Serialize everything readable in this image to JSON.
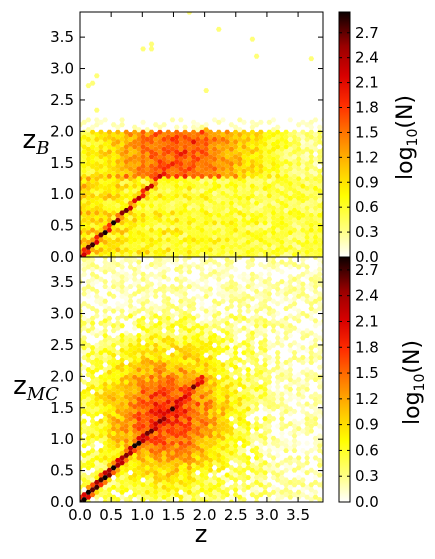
{
  "figure": {
    "xlabel": "z",
    "panels": [
      {
        "ylabel_main": "z",
        "ylabel_sub": "B",
        "colorbar_label_prefix": "log",
        "colorbar_label_sub": "10",
        "colorbar_label_suffix": "(N)"
      },
      {
        "ylabel_main": "z",
        "ylabel_sub": "MC",
        "colorbar_label_prefix": "log",
        "colorbar_label_sub": "10",
        "colorbar_label_suffix": "(N)"
      }
    ]
  },
  "chart_data": [
    {
      "type": "heatmap",
      "subtype": "hexbin",
      "panel": "top",
      "xlim": [
        0.0,
        3.9
      ],
      "ylim": [
        0.0,
        3.9
      ],
      "x_ticks": [
        0.0,
        0.5,
        1.0,
        1.5,
        2.0,
        2.5,
        3.0,
        3.5
      ],
      "x_tick_labels": [
        "0.0",
        "0.5",
        "1.0",
        "1.5",
        "2.0",
        "2.5",
        "3.0",
        "3.5"
      ],
      "y_ticks": [
        0.0,
        0.5,
        1.0,
        1.5,
        2.0,
        2.5,
        3.0,
        3.5
      ],
      "y_tick_labels": [
        "0.0",
        "0.5",
        "1.0",
        "1.5",
        "2.0",
        "2.5",
        "3.0",
        "3.5"
      ],
      "x_tick_labels_visible": false,
      "colormap": "hot_r",
      "colorbar": {
        "range": [
          0.0,
          2.95
        ],
        "ticks": [
          0.0,
          0.3,
          0.6,
          0.9,
          1.2,
          1.5,
          1.8,
          2.1,
          2.4,
          2.7
        ],
        "tick_labels": [
          "0.0",
          "0.3",
          "0.6",
          "0.9",
          "1.2",
          "1.5",
          "1.8",
          "2.1",
          "2.4",
          "2.7"
        ]
      },
      "features": {
        "diagonal_ridge": {
          "from": [
            0.05,
            0.05
          ],
          "to": [
            2.0,
            2.0
          ],
          "peak_log10N": 2.8
        },
        "populated_band_y": [
          0.0,
          2.2
        ],
        "dense_band": {
          "y": [
            1.25,
            2.0
          ],
          "x": [
            0.0,
            2.9
          ],
          "log10N": 1.5
        },
        "horizontal_stripes_y": [
          0.1,
          0.25,
          0.4,
          0.55,
          0.7,
          0.95,
          1.1,
          1.25
        ],
        "sparse_outliers_y": [
          3.5,
          3.9
        ]
      }
    },
    {
      "type": "heatmap",
      "subtype": "hexbin",
      "panel": "bottom",
      "xlim": [
        0.0,
        3.9
      ],
      "ylim": [
        0.0,
        3.9
      ],
      "x_ticks": [
        0.0,
        0.5,
        1.0,
        1.5,
        2.0,
        2.5,
        3.0,
        3.5
      ],
      "x_tick_labels": [
        "0.0",
        "0.5",
        "1.0",
        "1.5",
        "2.0",
        "2.5",
        "3.0",
        "3.5"
      ],
      "y_ticks": [
        0.0,
        0.5,
        1.0,
        1.5,
        2.0,
        2.5,
        3.0,
        3.5
      ],
      "y_tick_labels": [
        "0.0",
        "0.5",
        "1.0",
        "1.5",
        "2.0",
        "2.5",
        "3.0",
        "3.5"
      ],
      "colormap": "hot_r",
      "colorbar": {
        "range": [
          0.0,
          2.85
        ],
        "ticks": [
          0.0,
          0.3,
          0.6,
          0.9,
          1.2,
          1.5,
          1.8,
          2.1,
          2.4,
          2.7
        ],
        "tick_labels": [
          "0.0",
          "0.3",
          "0.6",
          "0.9",
          "1.2",
          "1.5",
          "1.8",
          "2.1",
          "2.4",
          "2.7"
        ]
      },
      "features": {
        "diagonal_ridge": {
          "from": [
            0.05,
            0.05
          ],
          "to": [
            1.9,
            1.9
          ],
          "peak_log10N": 2.7
        },
        "diffuse_cloud_center": [
          1.4,
          1.4
        ],
        "diffuse_cloud_spread": 0.7,
        "background_fill": "whole panel scattered"
      }
    }
  ]
}
